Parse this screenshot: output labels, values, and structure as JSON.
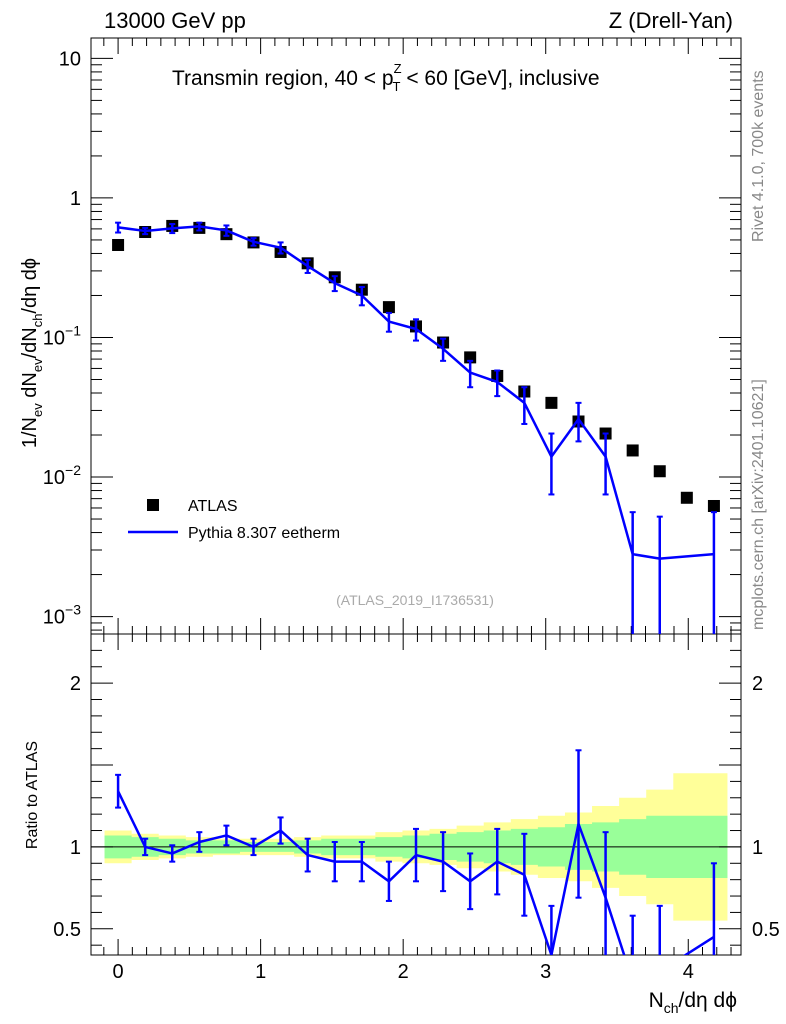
{
  "header": {
    "left": "13000 GeV pp",
    "right": "Z (Drell-Yan)"
  },
  "side_labels": {
    "upper": "Rivet 4.1.0,  700k events",
    "lower": "mcplots.cern.ch [arXiv:2401.10621]"
  },
  "main_plot": {
    "title_start": "Transmin region, 40 < p",
    "title_sup": "Z",
    "title_sub": "T",
    "title_end": " < 60 [GeV], inclusive",
    "ylabel": "1/N_ev dN_ev/dN_ch/dη dϕ",
    "analysis_tag": "(ATLAS_2019_I1736531)",
    "yscale": "log",
    "ylim": [
      0.00075,
      14
    ],
    "y_ticks": [
      {
        "value": 0.001,
        "base": "10",
        "exp": "−3"
      },
      {
        "value": 0.01,
        "base": "10",
        "exp": "−2"
      },
      {
        "value": 0.1,
        "base": "10",
        "exp": "−1"
      },
      {
        "value": 1,
        "base": "1",
        "exp": ""
      },
      {
        "value": 10,
        "base": "10",
        "exp": ""
      }
    ]
  },
  "ratio_plot": {
    "ylabel": "Ratio to ATLAS",
    "ylim": [
      0.34,
      2.3
    ],
    "y_ticks": [
      {
        "value": 0.5,
        "label": "0.5"
      },
      {
        "value": 1,
        "label": "1"
      },
      {
        "value": 2,
        "label": "2"
      }
    ]
  },
  "xaxis": {
    "label": "N_ch/dη dϕ",
    "xlim": [
      -0.19,
      4.37
    ],
    "ticks": [
      {
        "value": 0,
        "label": "0"
      },
      {
        "value": 1,
        "label": "1"
      },
      {
        "value": 2,
        "label": "2"
      },
      {
        "value": 3,
        "label": "3"
      },
      {
        "value": 4,
        "label": "4"
      }
    ]
  },
  "legend": {
    "atlas": "ATLAS",
    "pythia": "Pythia 8.307 eetherm"
  },
  "colors": {
    "data": "#000000",
    "mc": "#0000ff",
    "band_inner": "#99ff99",
    "band_outer": "#ffff99"
  },
  "chart_data": {
    "type": "scatter",
    "xlabel": "N_ch/dη dϕ",
    "ylabel": "1/N_ev dN_ev/dN_ch/dη dϕ",
    "title": "Transmin region, 40 < p_T^Z < 60 [GeV], inclusive",
    "x": [
      0.0,
      0.19,
      0.38,
      0.57,
      0.76,
      0.95,
      1.14,
      1.33,
      1.52,
      1.71,
      1.9,
      2.09,
      2.28,
      2.47,
      2.66,
      2.85,
      3.04,
      3.23,
      3.42,
      3.61,
      3.8,
      3.99,
      4.18
    ],
    "series": [
      {
        "name": "ATLAS",
        "values": [
          0.46,
          0.57,
          0.63,
          0.61,
          0.55,
          0.48,
          0.41,
          0.34,
          0.27,
          0.22,
          0.165,
          0.12,
          0.092,
          0.072,
          0.053,
          0.041,
          0.034,
          0.025,
          0.0205,
          0.0155,
          0.011,
          0.0071,
          0.0062
        ]
      },
      {
        "name": "Pythia 8.307 eetherm",
        "values": [
          0.615,
          0.58,
          0.605,
          0.625,
          0.585,
          0.485,
          0.44,
          0.325,
          0.245,
          0.2,
          0.13,
          0.115,
          0.083,
          0.056,
          0.048,
          0.034,
          0.014,
          0.026,
          0.014,
          0.0028,
          0.0026,
          null,
          0.0028
        ],
        "errors": [
          0.05,
          0.03,
          0.045,
          0.04,
          0.05,
          0.03,
          0.04,
          0.035,
          0.03,
          0.03,
          0.02,
          0.02,
          0.015,
          0.012,
          0.01,
          0.01,
          0.0065,
          0.008,
          0.0065,
          0.0028,
          0.0026,
          null,
          0.0028
        ]
      }
    ],
    "ratio": {
      "values": [
        1.34,
        1.0,
        0.96,
        1.03,
        1.07,
        1.0,
        1.1,
        0.95,
        0.91,
        0.91,
        0.79,
        0.95,
        0.91,
        0.79,
        0.91,
        0.83,
        0.34,
        1.14,
        0.69,
        0.18,
        0.24,
        null,
        0.45
      ],
      "errors": [
        0.1,
        0.05,
        0.05,
        0.06,
        0.06,
        0.05,
        0.08,
        0.1,
        0.12,
        0.12,
        0.12,
        0.16,
        0.18,
        0.17,
        0.2,
        0.25,
        0.3,
        0.45,
        0.4,
        0.4,
        0.4,
        null,
        0.45
      ],
      "band_inner_half_width": [
        0.07,
        0.06,
        0.05,
        0.04,
        0.04,
        0.03,
        0.03,
        0.04,
        0.05,
        0.05,
        0.06,
        0.07,
        0.08,
        0.09,
        0.1,
        0.11,
        0.12,
        0.14,
        0.15,
        0.17,
        0.19,
        0.19,
        0.19
      ],
      "band_outer_half_width": [
        0.1,
        0.08,
        0.07,
        0.06,
        0.05,
        0.05,
        0.05,
        0.06,
        0.07,
        0.07,
        0.09,
        0.1,
        0.11,
        0.13,
        0.15,
        0.17,
        0.19,
        0.21,
        0.25,
        0.3,
        0.35,
        0.45,
        0.45
      ]
    }
  }
}
